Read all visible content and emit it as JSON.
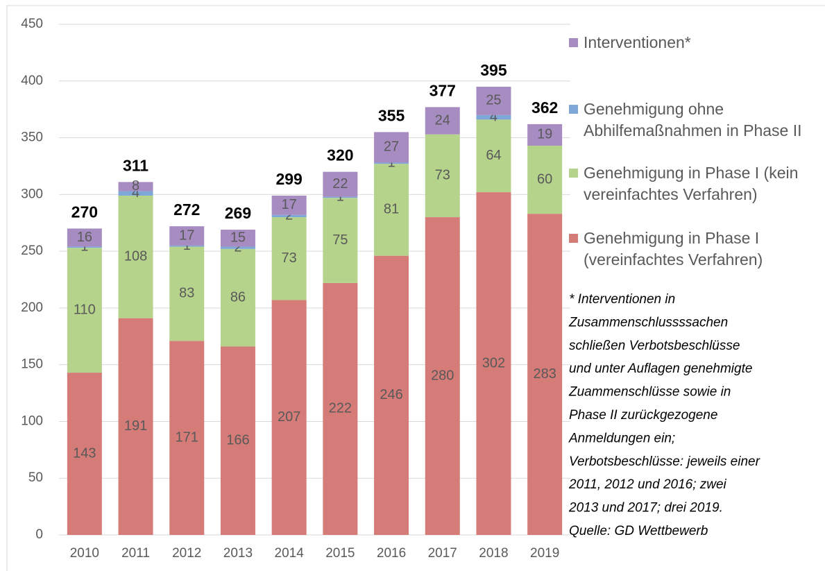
{
  "chart_data": {
    "type": "stacked_bar",
    "categories": [
      "2010",
      "2011",
      "2012",
      "2013",
      "2014",
      "2015",
      "2016",
      "2017",
      "2018",
      "2019"
    ],
    "series": [
      {
        "name": "Genehmigung in Phase I (vereinfachtes Verfahren)",
        "color": "#d57b78",
        "values": [
          143,
          191,
          171,
          166,
          207,
          222,
          246,
          280,
          302,
          283
        ]
      },
      {
        "name": "Genehmigung in Phase I (kein vereinfachtes Verfahren)",
        "color": "#b6d38c",
        "values": [
          110,
          108,
          83,
          86,
          73,
          75,
          81,
          73,
          64,
          60
        ]
      },
      {
        "name": "Genehmigung ohne Abhilfemaßnahmen in Phase II",
        "color": "#7fa7d8",
        "values": [
          1,
          4,
          1,
          2,
          2,
          1,
          1,
          null,
          4,
          null
        ]
      },
      {
        "name": "Interventionen*",
        "color": "#a78cc2",
        "values": [
          16,
          8,
          17,
          15,
          17,
          22,
          27,
          24,
          25,
          19
        ]
      }
    ],
    "totals": [
      270,
      311,
      272,
      269,
      299,
      320,
      355,
      377,
      395,
      362
    ],
    "ylim": [
      0,
      450
    ],
    "yticks": [
      0,
      50,
      100,
      150,
      200,
      250,
      300,
      350,
      400,
      450
    ],
    "grid": true,
    "legend": "right",
    "annotation": [
      "* Interventionen in",
      "Zusammenschlussssachen",
      "schließen Verbotsbeschlüsse",
      "und unter Auflagen genehmigte",
      "Zuammenschlüsse sowie in",
      "Phase II zurückgezogene",
      "Anmeldungen ein;",
      "Verbotsbeschlüsse: jeweils einer",
      "2011, 2012 und 2016; zwei",
      "2013 und 2017; drei 2019.",
      "Quelle: GD Wettbewerb"
    ]
  }
}
